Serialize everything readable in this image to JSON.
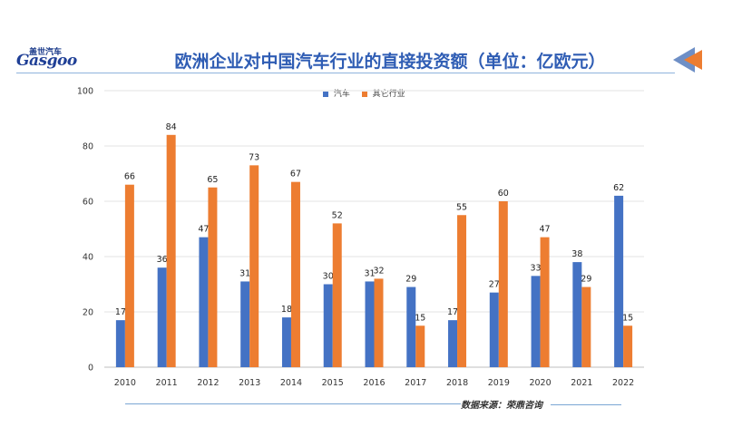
{
  "logo": {
    "cn": "盖世汽车",
    "en": "Gasgoo"
  },
  "title": "欧洲企业对中国汽车行业的直接投资额（单位：亿欧元）",
  "source": "数据来源：荣鼎咨询",
  "colors": {
    "series1": "#4472c4",
    "series2": "#ed7d31",
    "title": "#2f5db4"
  },
  "chart_data": {
    "type": "bar",
    "categories": [
      "2010",
      "2011",
      "2012",
      "2013",
      "2014",
      "2015",
      "2016",
      "2017",
      "2018",
      "2019",
      "2020",
      "2021",
      "2022"
    ],
    "series": [
      {
        "name": "汽车",
        "values": [
          17,
          36,
          47,
          31,
          18,
          30,
          31,
          29,
          17,
          27,
          33,
          38,
          62
        ]
      },
      {
        "name": "其它行业",
        "values": [
          66,
          84,
          65,
          73,
          67,
          52,
          32,
          15,
          55,
          60,
          47,
          29,
          15
        ]
      }
    ],
    "ylim": [
      0,
      100
    ],
    "yticks": [
      "0",
      "20",
      "40",
      "60",
      "80",
      "100"
    ],
    "grid": true,
    "legend_position": "top-center"
  }
}
